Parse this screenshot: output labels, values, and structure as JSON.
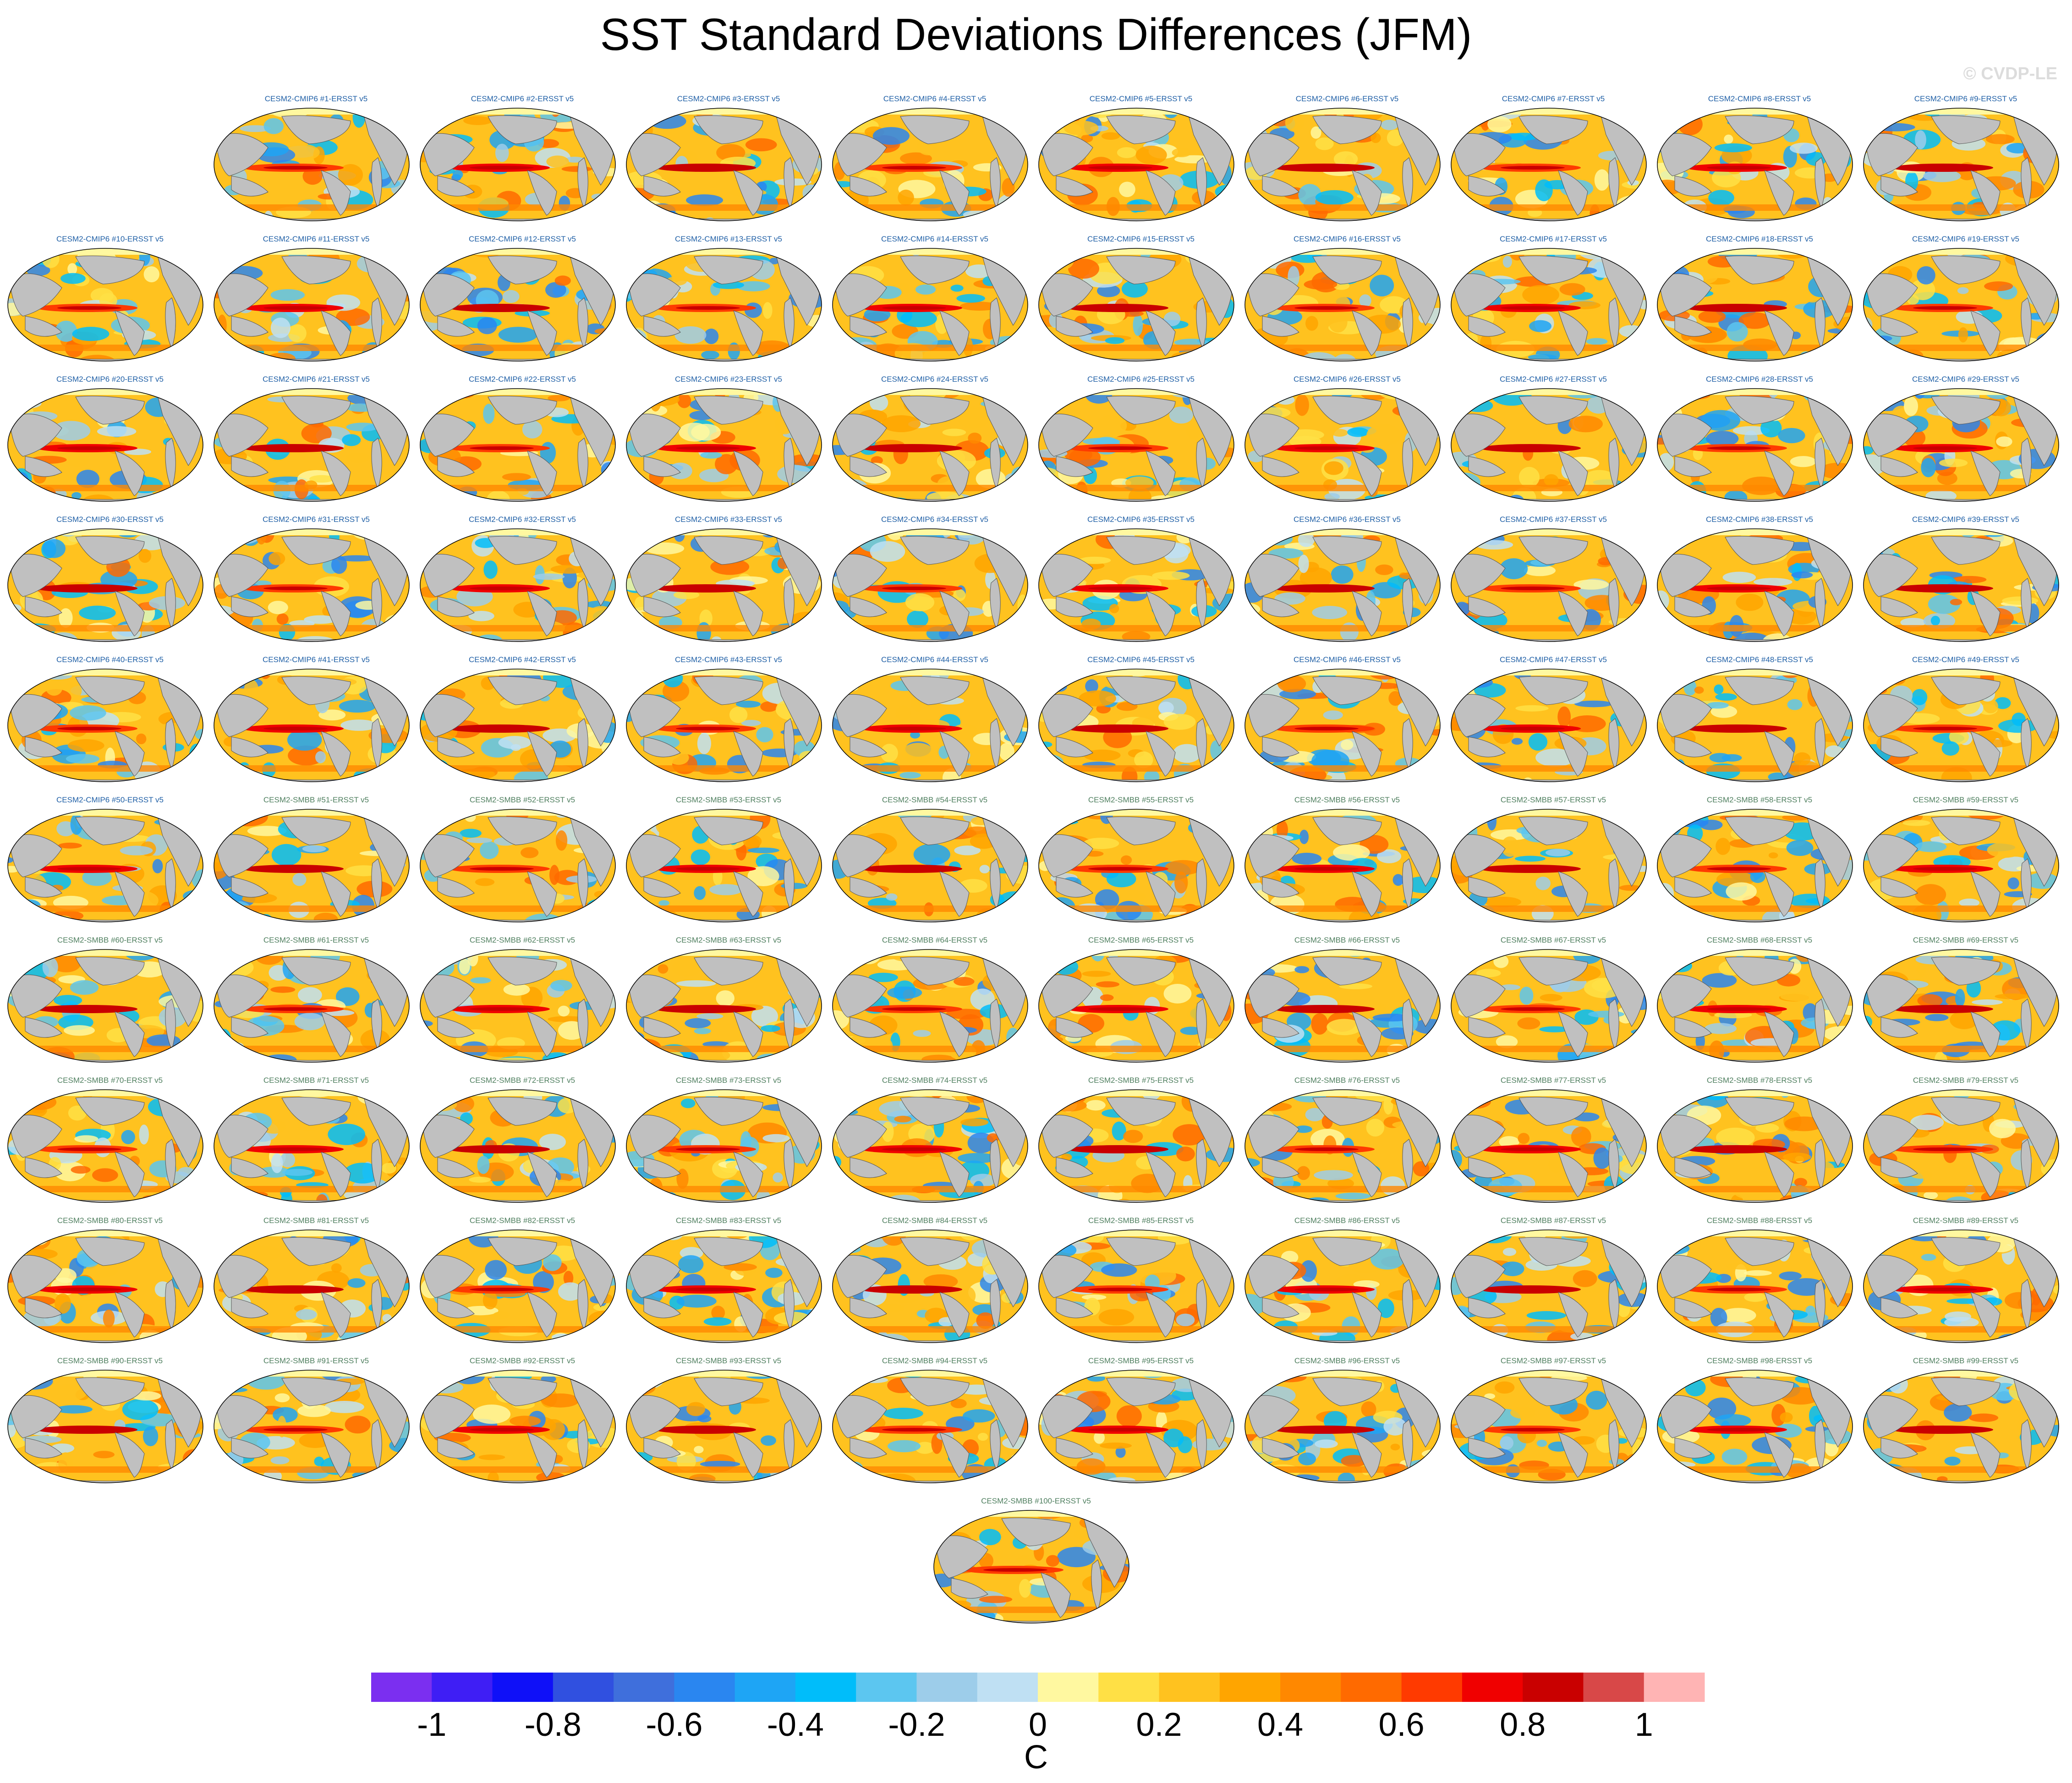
{
  "title": "SST Standard Deviations Differences (JFM)",
  "watermark": "© CVDP-LE",
  "chart_data": {
    "type": "heatmap",
    "title": "SST Standard Deviations Differences (JFM)",
    "projection": "global map (Robinson-like), Pacific-centered",
    "panel_labels": [
      "CESM2-CMIP6 #1-ERSST v5",
      "CESM2-CMIP6 #2-ERSST v5",
      "CESM2-CMIP6 #3-ERSST v5",
      "CESM2-CMIP6 #4-ERSST v5",
      "CESM2-CMIP6 #5-ERSST v5",
      "CESM2-CMIP6 #6-ERSST v5",
      "CESM2-CMIP6 #7-ERSST v5",
      "CESM2-CMIP6 #8-ERSST v5",
      "CESM2-CMIP6 #9-ERSST v5",
      "CESM2-CMIP6 #10-ERSST v5",
      "CESM2-CMIP6 #11-ERSST v5",
      "CESM2-CMIP6 #12-ERSST v5",
      "CESM2-CMIP6 #13-ERSST v5",
      "CESM2-CMIP6 #14-ERSST v5",
      "CESM2-CMIP6 #15-ERSST v5",
      "CESM2-CMIP6 #16-ERSST v5",
      "CESM2-CMIP6 #17-ERSST v5",
      "CESM2-CMIP6 #18-ERSST v5",
      "CESM2-CMIP6 #19-ERSST v5",
      "CESM2-CMIP6 #20-ERSST v5",
      "CESM2-CMIP6 #21-ERSST v5",
      "CESM2-CMIP6 #22-ERSST v5",
      "CESM2-CMIP6 #23-ERSST v5",
      "CESM2-CMIP6 #24-ERSST v5",
      "CESM2-CMIP6 #25-ERSST v5",
      "CESM2-CMIP6 #26-ERSST v5",
      "CESM2-CMIP6 #27-ERSST v5",
      "CESM2-CMIP6 #28-ERSST v5",
      "CESM2-CMIP6 #29-ERSST v5",
      "CESM2-CMIP6 #30-ERSST v5",
      "CESM2-CMIP6 #31-ERSST v5",
      "CESM2-CMIP6 #32-ERSST v5",
      "CESM2-CMIP6 #33-ERSST v5",
      "CESM2-CMIP6 #34-ERSST v5",
      "CESM2-CMIP6 #35-ERSST v5",
      "CESM2-CMIP6 #36-ERSST v5",
      "CESM2-CMIP6 #37-ERSST v5",
      "CESM2-CMIP6 #38-ERSST v5",
      "CESM2-CMIP6 #39-ERSST v5",
      "CESM2-CMIP6 #40-ERSST v5",
      "CESM2-CMIP6 #41-ERSST v5",
      "CESM2-CMIP6 #42-ERSST v5",
      "CESM2-CMIP6 #43-ERSST v5",
      "CESM2-CMIP6 #44-ERSST v5",
      "CESM2-CMIP6 #45-ERSST v5",
      "CESM2-CMIP6 #46-ERSST v5",
      "CESM2-CMIP6 #47-ERSST v5",
      "CESM2-CMIP6 #48-ERSST v5",
      "CESM2-CMIP6 #49-ERSST v5",
      "CESM2-CMIP6 #50-ERSST v5",
      "CESM2-SMBB #51-ERSST v5",
      "CESM2-SMBB #52-ERSST v5",
      "CESM2-SMBB #53-ERSST v5",
      "CESM2-SMBB #54-ERSST v5",
      "CESM2-SMBB #55-ERSST v5",
      "CESM2-SMBB #56-ERSST v5",
      "CESM2-SMBB #57-ERSST v5",
      "CESM2-SMBB #58-ERSST v5",
      "CESM2-SMBB #59-ERSST v5",
      "CESM2-SMBB #60-ERSST v5",
      "CESM2-SMBB #61-ERSST v5",
      "CESM2-SMBB #62-ERSST v5",
      "CESM2-SMBB #63-ERSST v5",
      "CESM2-SMBB #64-ERSST v5",
      "CESM2-SMBB #65-ERSST v5",
      "CESM2-SMBB #66-ERSST v5",
      "CESM2-SMBB #67-ERSST v5",
      "CESM2-SMBB #68-ERSST v5",
      "CESM2-SMBB #69-ERSST v5",
      "CESM2-SMBB #70-ERSST v5",
      "CESM2-SMBB #71-ERSST v5",
      "CESM2-SMBB #72-ERSST v5",
      "CESM2-SMBB #73-ERSST v5",
      "CESM2-SMBB #74-ERSST v5",
      "CESM2-SMBB #75-ERSST v5",
      "CESM2-SMBB #76-ERSST v5",
      "CESM2-SMBB #77-ERSST v5",
      "CESM2-SMBB #78-ERSST v5",
      "CESM2-SMBB #79-ERSST v5",
      "CESM2-SMBB #80-ERSST v5",
      "CESM2-SMBB #81-ERSST v5",
      "CESM2-SMBB #82-ERSST v5",
      "CESM2-SMBB #83-ERSST v5",
      "CESM2-SMBB #84-ERSST v5",
      "CESM2-SMBB #85-ERSST v5",
      "CESM2-SMBB #86-ERSST v5",
      "CESM2-SMBB #87-ERSST v5",
      "CESM2-SMBB #88-ERSST v5",
      "CESM2-SMBB #89-ERSST v5",
      "CESM2-SMBB #90-ERSST v5",
      "CESM2-SMBB #91-ERSST v5",
      "CESM2-SMBB #92-ERSST v5",
      "CESM2-SMBB #93-ERSST v5",
      "CESM2-SMBB #94-ERSST v5",
      "CESM2-SMBB #95-ERSST v5",
      "CESM2-SMBB #96-ERSST v5",
      "CESM2-SMBB #97-ERSST v5",
      "CESM2-SMBB #98-ERSST v5",
      "CESM2-SMBB #99-ERSST v5",
      "CESM2-SMBB #100-ERSST v5"
    ],
    "colorbar": {
      "units": "C",
      "levels": [
        -1,
        -0.9,
        -0.8,
        -0.7,
        -0.6,
        -0.5,
        -0.4,
        -0.3,
        -0.2,
        -0.1,
        0,
        0.1,
        0.2,
        0.3,
        0.4,
        0.5,
        0.6,
        0.7,
        0.8,
        0.9,
        1
      ],
      "colors": [
        "#7b2ff0",
        "#3f1ef5",
        "#0f10f8",
        "#3050e0",
        "#3f6fdc",
        "#2a86f0",
        "#1ea5f5",
        "#00bdfa",
        "#5cc6f0",
        "#9dcdea",
        "#bfe0f3",
        "#fff8a0",
        "#ffe045",
        "#ffc21f",
        "#ffa500",
        "#ff8800",
        "#ff6a00",
        "#ff3a00",
        "#f00000",
        "#c90000",
        "#d84848",
        "#ffb4b4"
      ],
      "tick_labels": [
        "-1",
        "-0.8",
        "-0.6",
        "-0.4",
        "-0.2",
        "0",
        "0.2",
        "0.4",
        "0.6",
        "0.8",
        "1"
      ]
    },
    "colors": {
      "land": "#c0c0c0",
      "ocean_base": "#ffc21f",
      "cmip6_label": "#1f5fa6",
      "smbb_label": "#4f7f5f"
    }
  }
}
